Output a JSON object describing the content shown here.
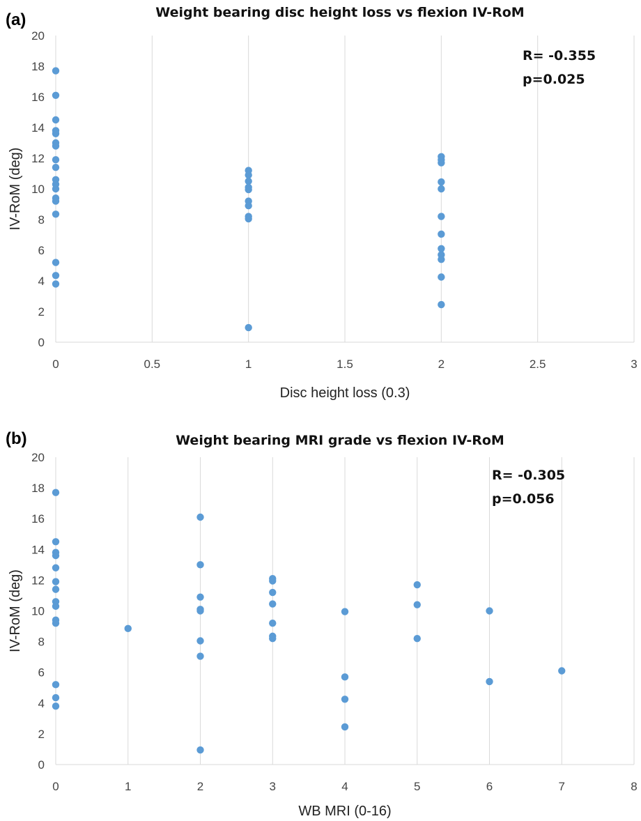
{
  "charts": [
    {
      "panel_label": "(a)",
      "stat_r": "R= -0.355",
      "stat_p": "p=0.025"
    },
    {
      "panel_label": "(b)",
      "stat_r": "R= -0.305",
      "stat_p": "p=0.056"
    }
  ],
  "colors": {
    "point": "#5b9bd5",
    "grid": "#d9d9d9"
  },
  "chart_data": [
    {
      "type": "scatter",
      "title": "Weight bearing disc height loss vs flexion IV-RoM",
      "xlabel": "Disc height loss (0.3)",
      "ylabel": "IV-RoM (deg)",
      "xlim": [
        0,
        3
      ],
      "ylim": [
        0,
        20
      ],
      "xticks": [
        0,
        0.5,
        1,
        1.5,
        2,
        2.5,
        3
      ],
      "xtick_labels": [
        "0",
        "0.5",
        "1",
        "1.5",
        "2",
        "2.5",
        "3"
      ],
      "yticks": [
        0,
        2,
        4,
        6,
        8,
        10,
        12,
        14,
        16,
        18,
        20
      ],
      "ytick_labels": [
        "0",
        "2",
        "4",
        "6",
        "8",
        "10",
        "12",
        "14",
        "16",
        "18",
        "20"
      ],
      "grid": "vertical",
      "points": [
        [
          0,
          17.7
        ],
        [
          0,
          16.1
        ],
        [
          0,
          14.5
        ],
        [
          0,
          13.8
        ],
        [
          0,
          13.6
        ],
        [
          0,
          13.0
        ],
        [
          0,
          12.8
        ],
        [
          0,
          11.9
        ],
        [
          0,
          11.4
        ],
        [
          0,
          10.6
        ],
        [
          0,
          10.3
        ],
        [
          0,
          10.0
        ],
        [
          0,
          9.4
        ],
        [
          0,
          9.2
        ],
        [
          0,
          8.35
        ],
        [
          0,
          5.2
        ],
        [
          0,
          4.35
        ],
        [
          0,
          3.8
        ],
        [
          1,
          11.2
        ],
        [
          1,
          10.9
        ],
        [
          1,
          10.5
        ],
        [
          1,
          10.1
        ],
        [
          1,
          9.95
        ],
        [
          1,
          9.2
        ],
        [
          1,
          8.9
        ],
        [
          1,
          8.2
        ],
        [
          1,
          8.05
        ],
        [
          1,
          0.95
        ],
        [
          2,
          12.1
        ],
        [
          2,
          11.9
        ],
        [
          2,
          11.7
        ],
        [
          2,
          10.45
        ],
        [
          2,
          10.0
        ],
        [
          2,
          8.2
        ],
        [
          2,
          7.05
        ],
        [
          2,
          6.1
        ],
        [
          2,
          5.7
        ],
        [
          2,
          5.4
        ],
        [
          2,
          4.25
        ],
        [
          2,
          2.45
        ]
      ]
    },
    {
      "type": "scatter",
      "title": "Weight bearing MRI grade vs flexion IV-RoM",
      "xlabel": "WB MRI (0-16)",
      "ylabel": "IV-RoM (deg)",
      "xlim": [
        0,
        8
      ],
      "ylim": [
        0,
        20
      ],
      "xticks": [
        0,
        1,
        2,
        3,
        4,
        5,
        6,
        7,
        8
      ],
      "xtick_labels": [
        "0",
        "1",
        "2",
        "3",
        "4",
        "5",
        "6",
        "7",
        "8"
      ],
      "yticks": [
        0,
        2,
        4,
        6,
        8,
        10,
        12,
        14,
        16,
        18,
        20
      ],
      "ytick_labels": [
        "0",
        "2",
        "4",
        "6",
        "8",
        "10",
        "12",
        "14",
        "16",
        "18",
        "20"
      ],
      "grid": "vertical",
      "points": [
        [
          0,
          17.7
        ],
        [
          0,
          14.5
        ],
        [
          0,
          13.8
        ],
        [
          0,
          13.6
        ],
        [
          0,
          12.8
        ],
        [
          0,
          11.9
        ],
        [
          0,
          11.4
        ],
        [
          0,
          10.6
        ],
        [
          0,
          10.3
        ],
        [
          0,
          9.4
        ],
        [
          0,
          9.2
        ],
        [
          0,
          5.2
        ],
        [
          0,
          4.35
        ],
        [
          0,
          3.8
        ],
        [
          1,
          8.85
        ],
        [
          2,
          16.1
        ],
        [
          2,
          13.0
        ],
        [
          2,
          10.9
        ],
        [
          2,
          10.1
        ],
        [
          2,
          10.0
        ],
        [
          2,
          8.05
        ],
        [
          2,
          7.05
        ],
        [
          2,
          0.95
        ],
        [
          3,
          12.1
        ],
        [
          3,
          11.95
        ],
        [
          3,
          11.2
        ],
        [
          3,
          10.45
        ],
        [
          3,
          9.2
        ],
        [
          3,
          8.35
        ],
        [
          3,
          8.2
        ],
        [
          4,
          9.95
        ],
        [
          4,
          5.7
        ],
        [
          4,
          4.25
        ],
        [
          4,
          2.45
        ],
        [
          5,
          11.7
        ],
        [
          5,
          10.4
        ],
        [
          5,
          8.2
        ],
        [
          6,
          10.0
        ],
        [
          6,
          5.4
        ],
        [
          7,
          6.1
        ]
      ]
    }
  ]
}
